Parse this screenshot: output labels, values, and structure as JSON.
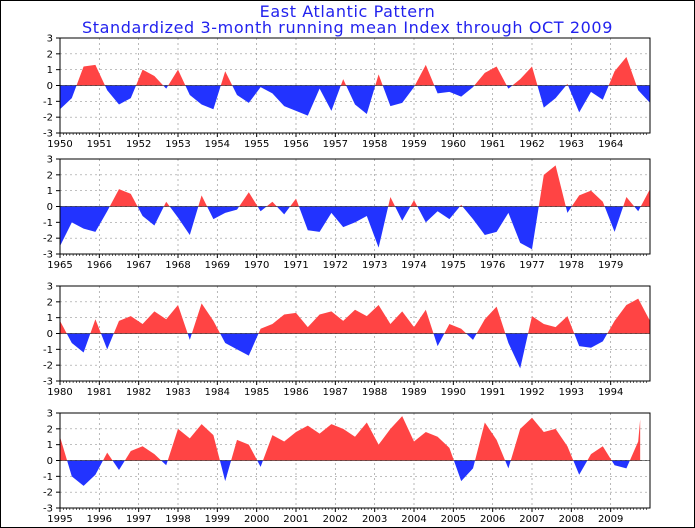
{
  "title": "East Atlantic Pattern",
  "subtitle": "Standardized 3-month running mean Index through OCT 2009",
  "colors": {
    "positive": "#ff4444",
    "negative": "#2233ff",
    "title": "#2222ee",
    "grid": "#999999"
  },
  "chart_data": [
    {
      "type": "area",
      "x_tick_labels": [
        "1950",
        "1951",
        "1952",
        "1953",
        "1954",
        "1955",
        "1956",
        "1957",
        "1958",
        "1959",
        "1960",
        "1961",
        "1962",
        "1963",
        "1964"
      ],
      "xlim": [
        1950,
        1965
      ],
      "ylim": [
        -3,
        3
      ],
      "y_ticks": [
        3,
        2,
        1,
        0,
        -1,
        -2,
        -3
      ],
      "grid": true,
      "x": [
        1950.0,
        1950.3,
        1950.6,
        1950.9,
        1951.2,
        1951.5,
        1951.8,
        1952.1,
        1952.4,
        1952.7,
        1953.0,
        1953.3,
        1953.6,
        1953.9,
        1954.2,
        1954.5,
        1954.8,
        1955.1,
        1955.4,
        1955.7,
        1956.0,
        1956.3,
        1956.6,
        1956.9,
        1957.2,
        1957.5,
        1957.8,
        1958.1,
        1958.4,
        1958.7,
        1959.0,
        1959.3,
        1959.6,
        1959.9,
        1960.2,
        1960.5,
        1960.8,
        1961.1,
        1961.4,
        1961.7,
        1962.0,
        1962.3,
        1962.6,
        1962.9,
        1963.2,
        1963.5,
        1963.8,
        1964.1,
        1964.4,
        1964.7,
        1965.0
      ],
      "values": [
        -1.5,
        -0.8,
        1.2,
        1.3,
        -0.3,
        -1.2,
        -0.8,
        1.0,
        0.6,
        -0.2,
        1.0,
        -0.6,
        -1.2,
        -1.5,
        0.9,
        -0.6,
        -1.1,
        -0.1,
        -0.5,
        -1.3,
        -1.6,
        -1.9,
        -0.2,
        -1.6,
        0.4,
        -1.2,
        -1.8,
        0.7,
        -1.3,
        -1.1,
        -0.1,
        1.3,
        -0.5,
        -0.4,
        -0.7,
        -0.1,
        0.8,
        1.2,
        -0.2,
        0.4,
        1.2,
        -1.4,
        -0.8,
        0.1,
        -1.7,
        -0.4,
        -0.9,
        0.9,
        1.8,
        -0.3,
        -1.1
      ]
    },
    {
      "type": "area",
      "x_tick_labels": [
        "1965",
        "1966",
        "1967",
        "1968",
        "1969",
        "1970",
        "1971",
        "1972",
        "1973",
        "1974",
        "1975",
        "1976",
        "1977",
        "1978",
        "1979"
      ],
      "xlim": [
        1965,
        1980
      ],
      "ylim": [
        -3,
        3
      ],
      "y_ticks": [
        3,
        2,
        1,
        0,
        -1,
        -2,
        -3
      ],
      "grid": true,
      "x": [
        1965.0,
        1965.3,
        1965.6,
        1965.9,
        1966.2,
        1966.5,
        1966.8,
        1967.1,
        1967.4,
        1967.7,
        1968.0,
        1968.3,
        1968.6,
        1968.9,
        1969.2,
        1969.5,
        1969.8,
        1970.1,
        1970.4,
        1970.7,
        1971.0,
        1971.3,
        1971.6,
        1971.9,
        1972.2,
        1972.5,
        1972.8,
        1973.1,
        1973.4,
        1973.7,
        1974.0,
        1974.3,
        1974.6,
        1974.9,
        1975.2,
        1975.5,
        1975.8,
        1976.1,
        1976.4,
        1976.7,
        1977.0,
        1977.3,
        1977.6,
        1977.9,
        1978.2,
        1978.5,
        1978.8,
        1979.1,
        1979.4,
        1979.7,
        1980.0
      ],
      "values": [
        -2.5,
        -1.0,
        -1.4,
        -1.6,
        -0.3,
        1.1,
        0.8,
        -0.6,
        -1.2,
        0.3,
        -0.7,
        -1.8,
        0.7,
        -0.8,
        -0.4,
        -0.2,
        0.9,
        -0.3,
        0.3,
        -0.5,
        0.5,
        -1.5,
        -1.6,
        -0.4,
        -1.3,
        -1.0,
        -0.6,
        -2.6,
        0.6,
        -0.9,
        0.4,
        -1.0,
        -0.3,
        -0.8,
        0.1,
        -0.8,
        -1.8,
        -1.6,
        -0.4,
        -2.3,
        -2.7,
        2.0,
        2.6,
        -0.4,
        0.7,
        1.0,
        0.3,
        -1.6,
        0.6,
        -0.3,
        1.1
      ]
    },
    {
      "type": "area",
      "x_tick_labels": [
        "1980",
        "1981",
        "1982",
        "1983",
        "1984",
        "1985",
        "1986",
        "1987",
        "1988",
        "1989",
        "1990",
        "1991",
        "1992",
        "1993",
        "1994"
      ],
      "xlim": [
        1980,
        1995
      ],
      "ylim": [
        -3,
        3
      ],
      "y_ticks": [
        3,
        2,
        1,
        0,
        -1,
        -2,
        -3
      ],
      "grid": true,
      "x": [
        1980.0,
        1980.3,
        1980.6,
        1980.9,
        1981.2,
        1981.5,
        1981.8,
        1982.1,
        1982.4,
        1982.7,
        1983.0,
        1983.3,
        1983.6,
        1983.9,
        1984.2,
        1984.5,
        1984.8,
        1985.1,
        1985.4,
        1985.7,
        1986.0,
        1986.3,
        1986.6,
        1986.9,
        1987.2,
        1987.5,
        1987.8,
        1988.1,
        1988.4,
        1988.7,
        1989.0,
        1989.3,
        1989.6,
        1989.9,
        1990.2,
        1990.5,
        1990.8,
        1991.1,
        1991.4,
        1991.7,
        1992.0,
        1992.3,
        1992.6,
        1992.9,
        1993.2,
        1993.5,
        1993.8,
        1994.1,
        1994.4,
        1994.7,
        1995.0
      ],
      "values": [
        0.8,
        -0.6,
        -1.2,
        0.9,
        -1.0,
        0.8,
        1.1,
        0.6,
        1.4,
        0.9,
        1.8,
        -0.4,
        1.9,
        0.8,
        -0.6,
        -1.0,
        -1.4,
        0.3,
        0.6,
        1.2,
        1.3,
        0.4,
        1.2,
        1.4,
        0.8,
        1.5,
        1.1,
        1.8,
        0.6,
        1.4,
        0.4,
        1.5,
        -0.8,
        0.6,
        0.3,
        -0.4,
        0.9,
        1.7,
        -0.6,
        -2.2,
        1.1,
        0.6,
        0.4,
        1.1,
        -0.8,
        -0.9,
        -0.5,
        0.8,
        1.8,
        2.2,
        0.8
      ]
    },
    {
      "type": "area",
      "x_tick_labels": [
        "1995",
        "1996",
        "1997",
        "1998",
        "1999",
        "2000",
        "2001",
        "2002",
        "2003",
        "2004",
        "2005",
        "2006",
        "2007",
        "2008",
        "2009"
      ],
      "xlim": [
        1995,
        2010
      ],
      "ylim": [
        -3,
        3
      ],
      "y_ticks": [
        3,
        2,
        1,
        0,
        -1,
        -2,
        -3
      ],
      "grid": true,
      "x": [
        1995.0,
        1995.3,
        1995.6,
        1995.9,
        1996.2,
        1996.5,
        1996.8,
        1997.1,
        1997.4,
        1997.7,
        1998.0,
        1998.3,
        1998.6,
        1998.9,
        1999.2,
        1999.5,
        1999.8,
        2000.1,
        2000.4,
        2000.7,
        2001.0,
        2001.3,
        2001.6,
        2001.9,
        2002.2,
        2002.5,
        2002.8,
        2003.1,
        2003.4,
        2003.7,
        2004.0,
        2004.3,
        2004.6,
        2004.9,
        2005.2,
        2005.5,
        2005.8,
        2006.1,
        2006.4,
        2006.7,
        2007.0,
        2007.3,
        2007.6,
        2007.9,
        2008.2,
        2008.5,
        2008.8,
        2009.1,
        2009.4,
        2009.7,
        2009.75
      ],
      "values": [
        1.5,
        -1.0,
        -1.6,
        -0.9,
        0.5,
        -0.6,
        0.6,
        0.9,
        0.4,
        -0.3,
        2.0,
        1.4,
        2.3,
        1.6,
        -1.3,
        1.3,
        1.0,
        -0.4,
        1.6,
        1.2,
        1.8,
        2.2,
        1.7,
        2.3,
        2.0,
        1.5,
        2.4,
        1.0,
        2.0,
        2.8,
        1.2,
        1.8,
        1.5,
        0.8,
        -1.3,
        -0.5,
        2.4,
        1.3,
        -0.5,
        2.0,
        2.7,
        1.8,
        2.0,
        0.9,
        -0.9,
        0.4,
        0.9,
        -0.3,
        -0.5,
        1.2,
        2.6
      ]
    }
  ]
}
